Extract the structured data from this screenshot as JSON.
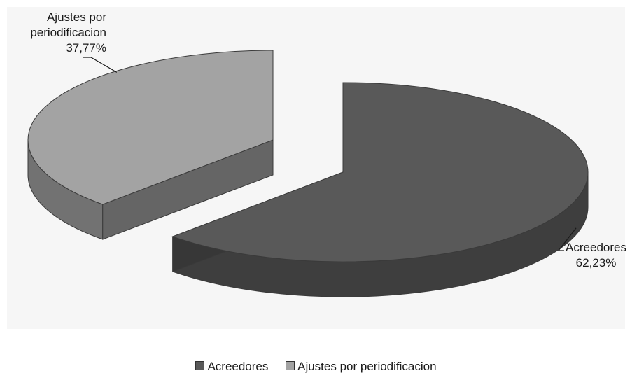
{
  "chart_data": {
    "type": "pie",
    "categories": [
      "Acreedores",
      "Ajustes por periodificacion"
    ],
    "values": [
      62.23,
      37.77
    ],
    "data_labels": [
      {
        "name": "Acreedores",
        "value": "62,23%"
      },
      {
        "name": "Ajustes por periodificacion",
        "value": "37,77%"
      }
    ],
    "colors": [
      "#595959",
      "#a3a3a3"
    ],
    "three_d": true,
    "exploded": true,
    "legend_position": "bottom",
    "title": ""
  },
  "labels": {
    "acreedores_name": "Acreedores",
    "acreedores_value": "62,23%",
    "ajustes_name_line1": "Ajustes por",
    "ajustes_name_line2": "periodificacion",
    "ajustes_value": "37,77%"
  },
  "legend": {
    "items": [
      {
        "label": "Acreedores",
        "color": "#595959"
      },
      {
        "label": "Ajustes por periodificacion",
        "color": "#a3a3a3"
      }
    ]
  }
}
